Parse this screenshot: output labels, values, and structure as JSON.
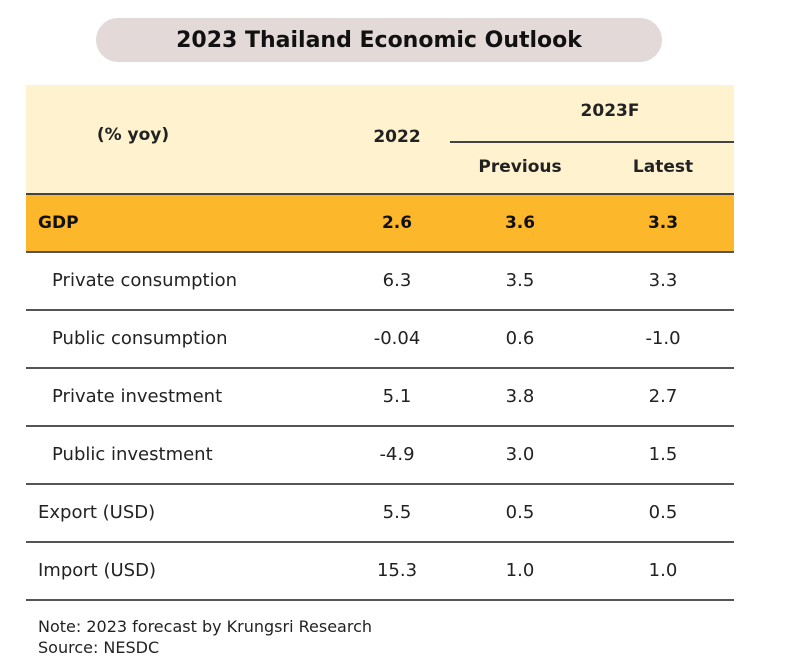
{
  "title": "2023 Thailand Economic Outlook",
  "table": {
    "header": {
      "unit": "(% yoy)",
      "col_2022": "2022",
      "col_2023f": "2023F",
      "col_previous": "Previous",
      "col_latest": "Latest"
    },
    "rows": [
      {
        "label": "GDP",
        "y2022": "2.6",
        "previous": "3.6",
        "latest": "3.3"
      },
      {
        "label": "Private consumption",
        "y2022": "6.3",
        "previous": "3.5",
        "latest": "3.3"
      },
      {
        "label": "Public consumption",
        "y2022": "-0.04",
        "previous": "0.6",
        "latest": "-1.0"
      },
      {
        "label": "Private investment",
        "y2022": "5.1",
        "previous": "3.8",
        "latest": "2.7"
      },
      {
        "label": "Public investment",
        "y2022": "-4.9",
        "previous": "3.0",
        "latest": "1.5"
      },
      {
        "label": "Export (USD)",
        "y2022": "5.5",
        "previous": "0.5",
        "latest": "0.5"
      },
      {
        "label": "Import (USD)",
        "y2022": "15.3",
        "previous": "1.0",
        "latest": "1.0"
      }
    ]
  },
  "notes": {
    "note": "Note: 2023 forecast by Krungsri Research",
    "source": "Source: NESDC"
  },
  "colors": {
    "title_bg": "#e3d9d9",
    "header_bg": "#fff2cf",
    "gdp_highlight": "#fdb72a"
  }
}
